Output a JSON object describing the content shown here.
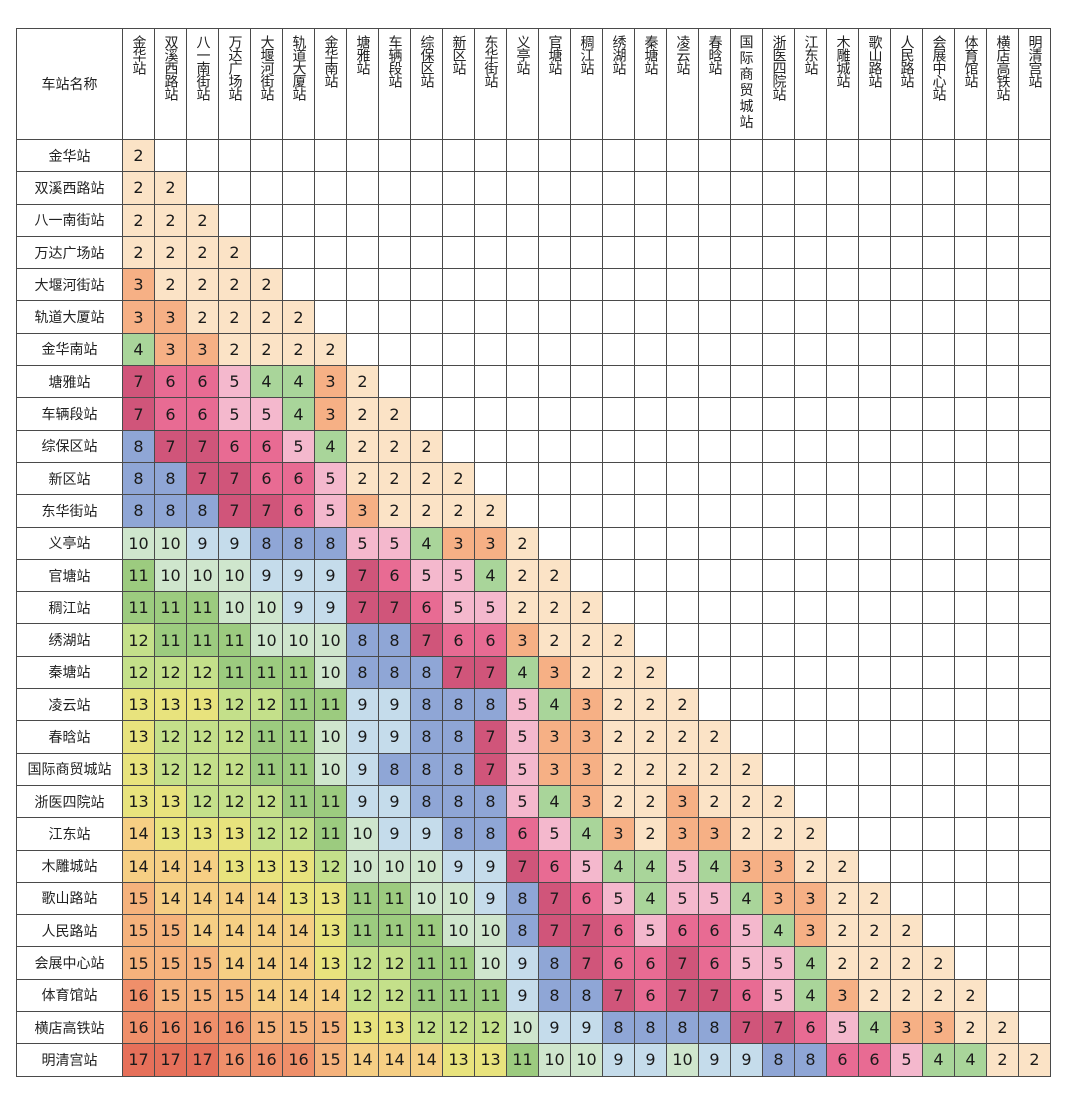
{
  "corner_label": "车站名称",
  "stations": [
    "金华站",
    "双溪西路站",
    "八一南街站",
    "万达广场站",
    "大堰河街站",
    "轨道大厦站",
    "金华南站",
    "塘雅站",
    "车辆段站",
    "综保区站",
    "新区站",
    "东华街站",
    "义亭站",
    "官塘站",
    "稠江站",
    "绣湖站",
    "秦塘站",
    "凌云站",
    "春晗站",
    "国际商贸城站",
    "浙医四院站",
    "江东站",
    "木雕城站",
    "歌山路站",
    "人民路站",
    "会展中心站",
    "体育馆站",
    "横店高铁站",
    "明清宫站"
  ],
  "fares": [
    [
      2
    ],
    [
      2,
      2
    ],
    [
      2,
      2,
      2
    ],
    [
      2,
      2,
      2,
      2
    ],
    [
      3,
      2,
      2,
      2,
      2
    ],
    [
      3,
      3,
      2,
      2,
      2,
      2
    ],
    [
      4,
      3,
      3,
      2,
      2,
      2,
      2
    ],
    [
      7,
      6,
      6,
      5,
      4,
      4,
      3,
      2
    ],
    [
      7,
      6,
      6,
      5,
      5,
      4,
      3,
      2,
      2
    ],
    [
      8,
      7,
      7,
      6,
      6,
      5,
      4,
      2,
      2,
      2
    ],
    [
      8,
      8,
      7,
      7,
      6,
      6,
      5,
      2,
      2,
      2,
      2
    ],
    [
      8,
      8,
      8,
      7,
      7,
      6,
      5,
      3,
      2,
      2,
      2,
      2
    ],
    [
      10,
      10,
      9,
      9,
      8,
      8,
      8,
      5,
      5,
      4,
      3,
      3,
      2
    ],
    [
      11,
      10,
      10,
      10,
      9,
      9,
      9,
      7,
      6,
      5,
      5,
      4,
      2,
      2
    ],
    [
      11,
      11,
      11,
      10,
      10,
      9,
      9,
      7,
      7,
      6,
      5,
      5,
      2,
      2,
      2
    ],
    [
      12,
      11,
      11,
      11,
      10,
      10,
      10,
      8,
      8,
      7,
      6,
      6,
      3,
      2,
      2,
      2
    ],
    [
      12,
      12,
      12,
      11,
      11,
      11,
      10,
      8,
      8,
      8,
      7,
      7,
      4,
      3,
      2,
      2,
      2
    ],
    [
      13,
      13,
      13,
      12,
      12,
      11,
      11,
      9,
      9,
      8,
      8,
      8,
      5,
      4,
      3,
      2,
      2,
      2
    ],
    [
      13,
      12,
      12,
      12,
      11,
      11,
      10,
      9,
      9,
      8,
      8,
      7,
      5,
      3,
      3,
      2,
      2,
      2,
      2
    ],
    [
      13,
      12,
      12,
      12,
      11,
      11,
      10,
      9,
      8,
      8,
      8,
      7,
      5,
      3,
      3,
      2,
      2,
      2,
      2,
      2
    ],
    [
      13,
      13,
      12,
      12,
      12,
      11,
      11,
      9,
      9,
      8,
      8,
      8,
      5,
      4,
      3,
      2,
      2,
      3,
      2,
      2,
      2
    ],
    [
      14,
      13,
      13,
      13,
      12,
      12,
      11,
      10,
      9,
      9,
      8,
      8,
      6,
      5,
      4,
      3,
      2,
      3,
      3,
      2,
      2,
      2
    ],
    [
      14,
      14,
      14,
      13,
      13,
      13,
      12,
      10,
      10,
      10,
      9,
      9,
      7,
      6,
      5,
      4,
      4,
      5,
      4,
      3,
      3,
      2,
      2
    ],
    [
      15,
      14,
      14,
      14,
      14,
      13,
      13,
      11,
      11,
      10,
      10,
      9,
      8,
      7,
      6,
      5,
      4,
      5,
      5,
      4,
      3,
      3,
      2,
      2
    ],
    [
      15,
      15,
      14,
      14,
      14,
      14,
      13,
      11,
      11,
      11,
      10,
      10,
      8,
      7,
      7,
      6,
      5,
      6,
      6,
      5,
      4,
      3,
      2,
      2,
      2
    ],
    [
      15,
      15,
      15,
      14,
      14,
      14,
      13,
      12,
      12,
      11,
      11,
      10,
      9,
      8,
      7,
      6,
      6,
      7,
      6,
      5,
      5,
      4,
      2,
      2,
      2,
      2
    ],
    [
      16,
      15,
      15,
      15,
      14,
      14,
      14,
      12,
      12,
      11,
      11,
      11,
      9,
      8,
      8,
      7,
      6,
      7,
      7,
      6,
      5,
      4,
      3,
      2,
      2,
      2,
      2
    ],
    [
      16,
      16,
      16,
      16,
      15,
      15,
      15,
      13,
      13,
      12,
      12,
      12,
      10,
      9,
      9,
      8,
      8,
      8,
      8,
      7,
      7,
      6,
      5,
      4,
      3,
      3,
      2,
      2
    ],
    [
      17,
      17,
      17,
      16,
      16,
      16,
      15,
      14,
      14,
      14,
      13,
      13,
      11,
      10,
      10,
      9,
      9,
      10,
      9,
      9,
      8,
      8,
      6,
      6,
      5,
      4,
      4,
      2,
      2
    ]
  ],
  "fare_colors": {
    "2": "#fbe3c6",
    "3": "#f6b085",
    "4": "#a9d59a",
    "5": "#f4b8cd",
    "6": "#e86b93",
    "7": "#d0557a",
    "8": "#8fa6d6",
    "9": "#c5dceb",
    "10": "#cfe6cd",
    "11": "#9ccb7f",
    "12": "#c4e08a",
    "13": "#e8e37d",
    "14": "#f6cf84",
    "15": "#f5b27c",
    "16": "#ef8f6a",
    "17": "#e6705a"
  }
}
